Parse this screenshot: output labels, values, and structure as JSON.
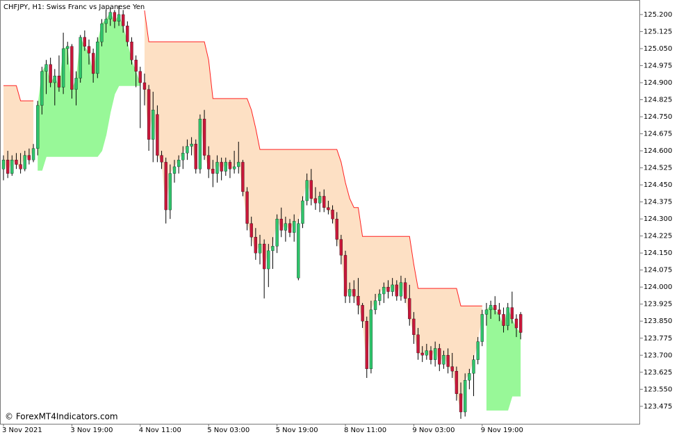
{
  "chart_data": {
    "type": "candlestick",
    "title": "CHFJPY, H1:  Swiss Franc vs Japanese Yen",
    "watermark": "© ForexMT4Indicators.com",
    "bull_color": "#2fc46b",
    "bear_color": "#c8173a",
    "wick_color": "#000000",
    "ylim": [
      123.398,
      125.264
    ],
    "yticks": [
      {
        "value": 125.2,
        "label": "125.200"
      },
      {
        "value": 125.125,
        "label": "125.125"
      },
      {
        "value": 125.05,
        "label": "125.050"
      },
      {
        "value": 124.975,
        "label": "124.975"
      },
      {
        "value": 124.9,
        "label": "124.900"
      },
      {
        "value": 124.825,
        "label": "124.825"
      },
      {
        "value": 124.75,
        "label": "124.750"
      },
      {
        "value": 124.675,
        "label": "124.675"
      },
      {
        "value": 124.6,
        "label": "124.600"
      },
      {
        "value": 124.525,
        "label": "124.525"
      },
      {
        "value": 124.45,
        "label": "124.450"
      },
      {
        "value": 124.375,
        "label": "124.375"
      },
      {
        "value": 124.3,
        "label": "124.300"
      },
      {
        "value": 124.225,
        "label": "124.225"
      },
      {
        "value": 124.15,
        "label": "124.150"
      },
      {
        "value": 124.075,
        "label": "124.075"
      },
      {
        "value": 124.0,
        "label": "124.000"
      },
      {
        "value": 123.925,
        "label": "123.925"
      },
      {
        "value": 123.85,
        "label": "123.850"
      },
      {
        "value": 123.775,
        "label": "123.775"
      },
      {
        "value": 123.7,
        "label": "123.700"
      },
      {
        "value": 123.625,
        "label": "123.625"
      },
      {
        "value": 123.55,
        "label": "123.550"
      },
      {
        "value": 123.475,
        "label": "123.475"
      }
    ],
    "categories": [
      "3 Nov 2021",
      null,
      null,
      null,
      null,
      null,
      null,
      null,
      null,
      null,
      null,
      null,
      null,
      null,
      null,
      null,
      "3 Nov 19:00",
      null,
      null,
      null,
      null,
      null,
      null,
      null,
      null,
      null,
      null,
      null,
      null,
      null,
      null,
      null,
      "4 Nov 11:00",
      null,
      null,
      null,
      null,
      null,
      null,
      null,
      null,
      null,
      null,
      null,
      null,
      null,
      null,
      null,
      "5 Nov 03:00",
      null,
      null,
      null,
      null,
      null,
      null,
      null,
      null,
      null,
      null,
      null,
      null,
      null,
      null,
      null,
      "5 Nov 19:00",
      null,
      null,
      null,
      null,
      null,
      null,
      null,
      null,
      null,
      null,
      null,
      null,
      null,
      null,
      null,
      "8 Nov 11:00",
      null,
      null,
      null,
      null,
      null,
      null,
      null,
      null,
      null,
      null,
      null,
      null,
      null,
      null,
      null,
      "9 Nov 03:00",
      null,
      null,
      null,
      null,
      null,
      null,
      null,
      null,
      null,
      null,
      null,
      null,
      null,
      null,
      null,
      "9 Nov 19:00",
      null,
      null,
      null,
      null,
      null,
      null,
      null,
      null,
      null
    ],
    "ohlc": [
      [
        124.52,
        124.58,
        124.47,
        124.56
      ],
      [
        124.56,
        124.6,
        124.48,
        124.5
      ],
      [
        124.5,
        124.58,
        124.49,
        124.56
      ],
      [
        124.56,
        124.59,
        124.52,
        124.54
      ],
      [
        124.54,
        124.59,
        124.5,
        124.52
      ],
      [
        124.52,
        124.6,
        124.51,
        124.58
      ],
      [
        124.58,
        124.61,
        124.54,
        124.56
      ],
      [
        124.56,
        124.63,
        124.55,
        124.61
      ],
      [
        124.61,
        124.82,
        124.58,
        124.8
      ],
      [
        124.8,
        124.97,
        124.76,
        124.95
      ],
      [
        124.95,
        125.0,
        124.85,
        124.98
      ],
      [
        124.98,
        125.01,
        124.88,
        124.9
      ],
      [
        124.9,
        124.96,
        124.8,
        124.93
      ],
      [
        124.93,
        125.02,
        124.86,
        124.88
      ],
      [
        124.88,
        125.12,
        124.85,
        125.05
      ],
      [
        125.05,
        125.08,
        124.98,
        125.06
      ],
      [
        125.06,
        125.07,
        124.83,
        124.87
      ],
      [
        124.87,
        124.95,
        124.8,
        124.92
      ],
      [
        124.92,
        125.11,
        124.9,
        125.1
      ],
      [
        125.1,
        125.13,
        125.04,
        125.06
      ],
      [
        125.06,
        125.09,
        124.98,
        125.03
      ],
      [
        125.03,
        125.05,
        124.9,
        124.94
      ],
      [
        124.94,
        125.1,
        124.92,
        125.08
      ],
      [
        125.08,
        125.18,
        125.06,
        125.16
      ],
      [
        125.16,
        125.22,
        125.12,
        125.18
      ],
      [
        125.18,
        125.23,
        125.15,
        125.21
      ],
      [
        125.21,
        125.22,
        125.14,
        125.17
      ],
      [
        125.17,
        125.24,
        125.15,
        125.2
      ],
      [
        125.2,
        125.22,
        125.12,
        125.15
      ],
      [
        125.15,
        125.17,
        125.06,
        125.08
      ],
      [
        125.08,
        125.1,
        124.98,
        125.0
      ],
      [
        125.0,
        125.02,
        124.88,
        124.95
      ],
      [
        124.95,
        124.97,
        124.7,
        124.9
      ],
      [
        124.9,
        124.94,
        124.8,
        124.87
      ],
      [
        124.87,
        124.89,
        124.6,
        124.65
      ],
      [
        124.65,
        124.86,
        124.55,
        124.78
      ],
      [
        124.76,
        124.8,
        124.55,
        124.58
      ],
      [
        124.58,
        124.6,
        124.52,
        124.55
      ],
      [
        124.55,
        124.57,
        124.28,
        124.34
      ],
      [
        124.34,
        124.54,
        124.3,
        124.5
      ],
      [
        124.5,
        124.56,
        124.46,
        124.53
      ],
      [
        124.53,
        124.58,
        124.5,
        124.56
      ],
      [
        124.56,
        124.62,
        124.52,
        124.59
      ],
      [
        124.59,
        124.65,
        124.56,
        124.62
      ],
      [
        124.62,
        124.66,
        124.58,
        124.63
      ],
      [
        124.63,
        124.65,
        124.5,
        124.52
      ],
      [
        124.52,
        124.76,
        124.5,
        124.74
      ],
      [
        124.74,
        124.78,
        124.56,
        124.58
      ],
      [
        124.58,
        124.62,
        124.48,
        124.52
      ],
      [
        124.52,
        124.56,
        124.44,
        124.5
      ],
      [
        124.5,
        124.58,
        124.46,
        124.55
      ],
      [
        124.55,
        124.57,
        124.47,
        124.51
      ],
      [
        124.51,
        124.57,
        124.49,
        124.55
      ],
      [
        124.55,
        124.56,
        124.48,
        124.52
      ],
      [
        124.52,
        124.6,
        124.5,
        124.53
      ],
      [
        124.53,
        124.64,
        124.5,
        124.55
      ],
      [
        124.55,
        124.56,
        124.4,
        124.42
      ],
      [
        124.42,
        124.44,
        124.25,
        124.28
      ],
      [
        124.28,
        124.31,
        124.18,
        124.22
      ],
      [
        124.22,
        124.26,
        124.12,
        124.15
      ],
      [
        124.15,
        124.23,
        124.1,
        124.19
      ],
      [
        124.19,
        124.21,
        123.95,
        124.08
      ],
      [
        124.08,
        124.19,
        124.0,
        124.16
      ],
      [
        124.16,
        124.22,
        124.08,
        124.18
      ],
      [
        124.18,
        124.32,
        124.15,
        124.3
      ],
      [
        124.3,
        124.35,
        124.22,
        124.25
      ],
      [
        124.25,
        124.31,
        124.2,
        124.28
      ],
      [
        124.28,
        124.3,
        124.22,
        124.24
      ],
      [
        124.24,
        124.32,
        124.2,
        124.29
      ],
      [
        124.04,
        124.3,
        124.03,
        124.28
      ],
      [
        124.28,
        124.4,
        124.26,
        124.38
      ],
      [
        124.38,
        124.5,
        124.36,
        124.47
      ],
      [
        124.47,
        124.52,
        124.36,
        124.39
      ],
      [
        124.39,
        124.44,
        124.34,
        124.37
      ],
      [
        124.37,
        124.42,
        124.33,
        124.4
      ],
      [
        124.4,
        124.43,
        124.33,
        124.35
      ],
      [
        124.35,
        124.38,
        124.32,
        124.34
      ],
      [
        124.34,
        124.36,
        124.28,
        124.3
      ],
      [
        124.3,
        124.33,
        124.18,
        124.21
      ],
      [
        124.21,
        124.23,
        124.1,
        124.14
      ],
      [
        124.14,
        124.16,
        123.93,
        123.96
      ],
      [
        123.96,
        124.02,
        123.93,
        123.99
      ],
      [
        123.99,
        124.03,
        123.93,
        123.96
      ],
      [
        123.96,
        124.04,
        123.88,
        123.92
      ],
      [
        123.92,
        123.93,
        123.82,
        123.85
      ],
      [
        123.85,
        123.87,
        123.6,
        123.64
      ],
      [
        123.64,
        123.94,
        123.62,
        123.9
      ],
      [
        123.9,
        123.97,
        123.88,
        123.94
      ],
      [
        123.94,
        123.99,
        123.92,
        123.97
      ],
      [
        123.97,
        124.02,
        123.93,
        124.0
      ],
      [
        124.0,
        124.03,
        123.95,
        123.98
      ],
      [
        123.98,
        124.04,
        123.96,
        124.01
      ],
      [
        124.01,
        124.03,
        123.94,
        123.96
      ],
      [
        123.96,
        124.05,
        123.94,
        124.02
      ],
      [
        124.02,
        124.04,
        123.93,
        123.95
      ],
      [
        123.95,
        124.01,
        123.83,
        123.86
      ],
      [
        123.86,
        123.89,
        123.75,
        123.79
      ],
      [
        123.79,
        123.82,
        123.68,
        123.71
      ],
      [
        123.71,
        123.74,
        123.67,
        123.7
      ],
      [
        123.7,
        123.75,
        123.68,
        123.72
      ],
      [
        123.72,
        123.74,
        123.66,
        123.68
      ],
      [
        123.68,
        123.76,
        123.65,
        123.73
      ],
      [
        123.73,
        123.75,
        123.63,
        123.66
      ],
      [
        123.66,
        123.72,
        123.64,
        123.7
      ],
      [
        123.7,
        123.73,
        123.62,
        123.65
      ],
      [
        123.65,
        123.71,
        123.6,
        123.63
      ],
      [
        123.63,
        123.65,
        123.5,
        123.53
      ],
      [
        123.53,
        123.58,
        123.42,
        123.45
      ],
      [
        123.45,
        123.62,
        123.43,
        123.59
      ],
      [
        123.59,
        123.64,
        123.55,
        123.62
      ],
      [
        123.62,
        123.7,
        123.52,
        123.68
      ],
      [
        123.68,
        123.78,
        123.66,
        123.76
      ],
      [
        123.76,
        123.9,
        123.74,
        123.88
      ],
      [
        123.88,
        123.93,
        123.83,
        123.9
      ],
      [
        123.9,
        123.94,
        123.86,
        123.92
      ],
      [
        123.92,
        123.96,
        123.88,
        123.9
      ],
      [
        123.9,
        123.93,
        123.85,
        123.88
      ],
      [
        123.88,
        123.91,
        123.8,
        123.83
      ],
      [
        123.83,
        123.93,
        123.81,
        123.91
      ],
      [
        123.91,
        123.98,
        123.84,
        123.86
      ],
      [
        123.86,
        123.88,
        123.78,
        123.82
      ],
      [
        123.88,
        123.89,
        123.77,
        123.8
      ]
    ],
    "indicator": [
      {
        "color": "#ff2020",
        "fill": "#fde0c4",
        "values": [
          124.887,
          124.887,
          124.887,
          124.887,
          124.82,
          124.82,
          124.82,
          124.82,
          null,
          null,
          null,
          null,
          null,
          null,
          null,
          null,
          null,
          null,
          null,
          null,
          null,
          null,
          null,
          null,
          null,
          null,
          null,
          null,
          null,
          null,
          null,
          null,
          null,
          125.218,
          125.08,
          125.08,
          125.08,
          125.08,
          125.08,
          125.08,
          125.08,
          125.08,
          125.08,
          125.08,
          125.08,
          125.08,
          125.08,
          125.08,
          125.0,
          124.83,
          124.83,
          124.83,
          124.83,
          124.83,
          124.83,
          124.83,
          124.83,
          124.83,
          124.78,
          124.7,
          124.606,
          124.606,
          124.606,
          124.606,
          124.606,
          124.606,
          124.606,
          124.606,
          124.606,
          124.606,
          124.606,
          124.606,
          124.606,
          124.606,
          124.606,
          124.606,
          124.606,
          124.606,
          124.606,
          124.55,
          124.46,
          124.39,
          124.35,
          124.35,
          124.223,
          124.223,
          124.223,
          124.223,
          124.223,
          124.223,
          124.223,
          124.223,
          124.223,
          124.223,
          124.223,
          124.223,
          124.1,
          123.994,
          123.994,
          123.994,
          123.994,
          123.994,
          123.994,
          123.994,
          123.994,
          123.994,
          123.994,
          123.917,
          123.917,
          123.917,
          123.917,
          123.917,
          123.917,
          null,
          null,
          null,
          null,
          null,
          null,
          null,
          null,
          null
        ]
      },
      {
        "color": "#98f898",
        "fill": "#98f898",
        "values": [
          null,
          null,
          null,
          null,
          null,
          null,
          null,
          null,
          124.514,
          124.514,
          124.575,
          124.575,
          124.575,
          124.575,
          124.575,
          124.575,
          124.575,
          124.575,
          124.575,
          124.575,
          124.575,
          124.575,
          124.575,
          124.6,
          124.67,
          124.77,
          124.85,
          124.887,
          124.887,
          124.887,
          124.887,
          124.887,
          124.887,
          null,
          null,
          null,
          null,
          null,
          null,
          null,
          null,
          null,
          null,
          null,
          null,
          null,
          null,
          null,
          null,
          null,
          null,
          null,
          null,
          null,
          null,
          null,
          null,
          null,
          null,
          null,
          null,
          null,
          null,
          null,
          null,
          null,
          null,
          null,
          null,
          null,
          null,
          null,
          null,
          null,
          null,
          null,
          null,
          null,
          null,
          null,
          null,
          null,
          null,
          null,
          null,
          null,
          null,
          null,
          null,
          null,
          null,
          null,
          null,
          null,
          null,
          null,
          null,
          null,
          null,
          null,
          null,
          null,
          null,
          null,
          null,
          null,
          null,
          null,
          null,
          null,
          null,
          null,
          null,
          123.458,
          123.458,
          123.458,
          123.458,
          123.458,
          123.458,
          123.52,
          123.52,
          123.52
        ]
      }
    ]
  }
}
